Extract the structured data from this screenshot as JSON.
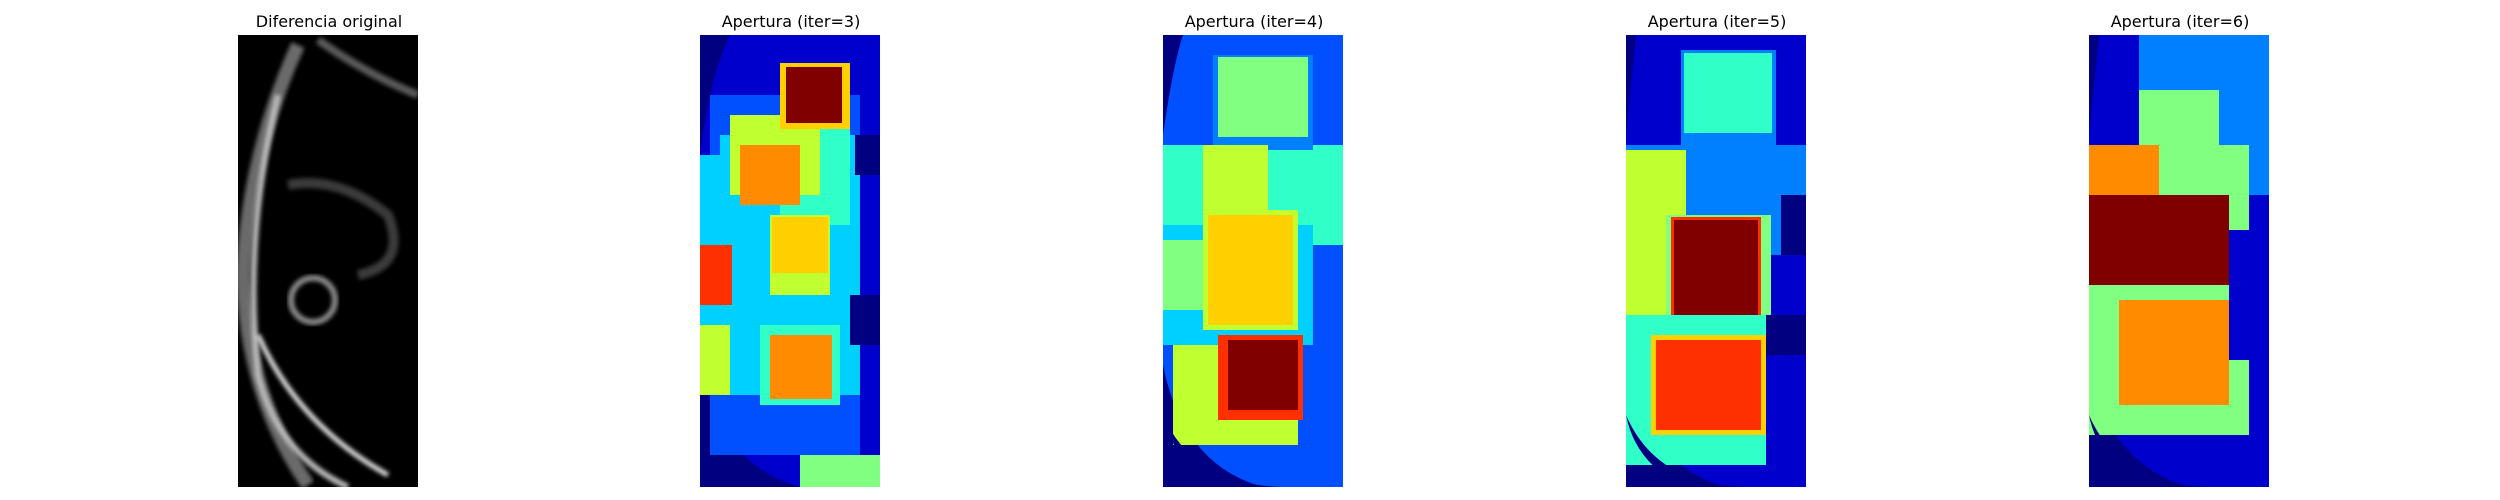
{
  "panels": [
    {
      "title": "Diferencia original",
      "kind": "grayscale"
    },
    {
      "title": "Apertura (iter=3)",
      "kind": "jet-morph"
    },
    {
      "title": "Apertura (iter=4)",
      "kind": "jet-morph"
    },
    {
      "title": "Apertura (iter=5)",
      "kind": "jet-morph"
    },
    {
      "title": "Apertura (iter=6)",
      "kind": "jet-morph"
    }
  ],
  "colors": {
    "background": "#000080",
    "darkblue": "#0000cd",
    "blue": "#0050ff",
    "azure": "#0080ff",
    "cyan": "#00d0ff",
    "aqua": "#30ffc8",
    "lightgreen": "#80ff80",
    "yellowgreen": "#c0ff30",
    "yellow": "#ffd000",
    "orange": "#ff8c00",
    "redorange": "#ff3000",
    "darkred": "#800000"
  }
}
